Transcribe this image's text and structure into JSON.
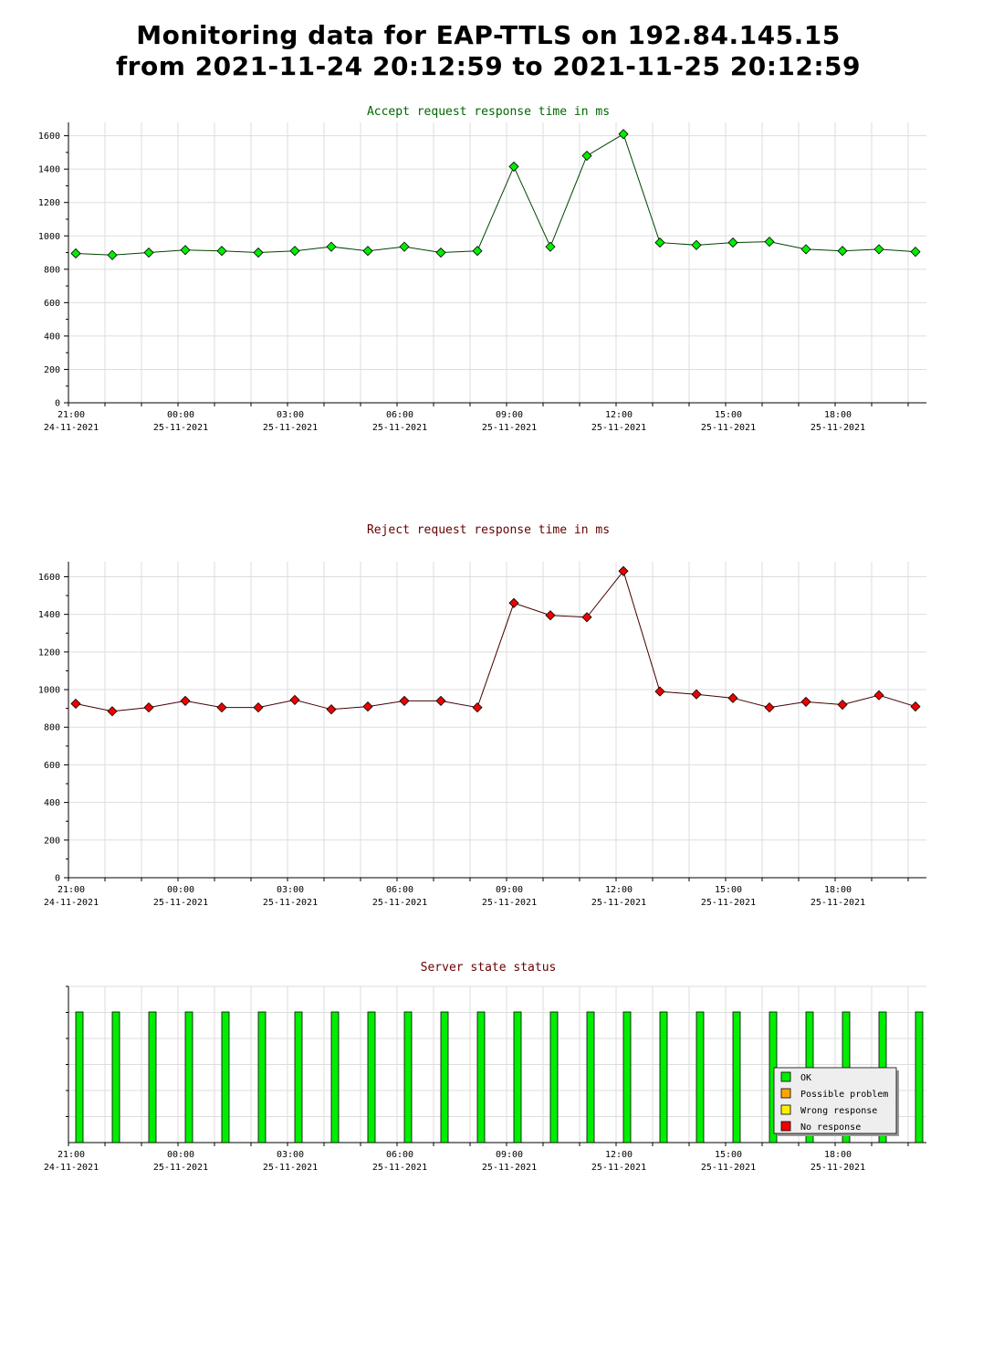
{
  "page_title": {
    "line1": "Monitoring data for EAP-TTLS on 192.84.145.15",
    "line2": "from 2021-11-24 20:12:59 to 2021-11-25 20:12:59"
  },
  "colors": {
    "accept_marker": "#00ee00",
    "accept_line": "#004400",
    "reject_marker": "#ee0000",
    "reject_line": "#440000",
    "status_ok": "#00ee00",
    "status_possible_problem": "#ffa500",
    "status_wrong_response": "#ffee00",
    "status_no_response": "#ee0000",
    "grid": "#dddddd",
    "accept_title": "#006600",
    "reject_title": "#660000",
    "status_title": "#660000"
  },
  "x_ticks": [
    {
      "time": "21:00",
      "date": "24-11-2021"
    },
    {
      "time": "00:00",
      "date": "25-11-2021"
    },
    {
      "time": "03:00",
      "date": "25-11-2021"
    },
    {
      "time": "06:00",
      "date": "25-11-2021"
    },
    {
      "time": "09:00",
      "date": "25-11-2021"
    },
    {
      "time": "12:00",
      "date": "25-11-2021"
    },
    {
      "time": "15:00",
      "date": "25-11-2021"
    },
    {
      "time": "18:00",
      "date": "25-11-2021"
    }
  ],
  "chart_data": [
    {
      "type": "line",
      "title": "Accept request response time in ms",
      "ylim": [
        0,
        1680
      ],
      "yticks": [
        0,
        200,
        400,
        600,
        800,
        1000,
        1200,
        1400,
        1600
      ],
      "grid": true,
      "x": [
        "2021-11-24 21:12",
        "2021-11-24 22:12",
        "2021-11-24 23:12",
        "2021-11-25 00:12",
        "2021-11-25 01:12",
        "2021-11-25 02:12",
        "2021-11-25 03:12",
        "2021-11-25 04:12",
        "2021-11-25 05:12",
        "2021-11-25 06:12",
        "2021-11-25 07:12",
        "2021-11-25 08:12",
        "2021-11-25 09:12",
        "2021-11-25 10:12",
        "2021-11-25 11:12",
        "2021-11-25 12:12",
        "2021-11-25 13:12",
        "2021-11-25 14:12",
        "2021-11-25 15:12",
        "2021-11-25 16:12",
        "2021-11-25 17:12",
        "2021-11-25 18:12",
        "2021-11-25 19:12",
        "2021-11-25 20:12"
      ],
      "values": [
        895,
        885,
        900,
        915,
        910,
        900,
        910,
        935,
        910,
        935,
        900,
        910,
        1415,
        935,
        1480,
        1610,
        960,
        945,
        960,
        965,
        920,
        910,
        920,
        905
      ]
    },
    {
      "type": "line",
      "title": "Reject request response time in ms",
      "ylim": [
        0,
        1680
      ],
      "yticks": [
        0,
        200,
        400,
        600,
        800,
        1000,
        1200,
        1400,
        1600
      ],
      "grid": true,
      "x": [
        "2021-11-24 21:12",
        "2021-11-24 22:12",
        "2021-11-24 23:12",
        "2021-11-25 00:12",
        "2021-11-25 01:12",
        "2021-11-25 02:12",
        "2021-11-25 03:12",
        "2021-11-25 04:12",
        "2021-11-25 05:12",
        "2021-11-25 06:12",
        "2021-11-25 07:12",
        "2021-11-25 08:12",
        "2021-11-25 09:12",
        "2021-11-25 10:12",
        "2021-11-25 11:12",
        "2021-11-25 12:12",
        "2021-11-25 13:12",
        "2021-11-25 14:12",
        "2021-11-25 15:12",
        "2021-11-25 16:12",
        "2021-11-25 17:12",
        "2021-11-25 18:12",
        "2021-11-25 19:12",
        "2021-11-25 20:12"
      ],
      "values": [
        925,
        885,
        905,
        940,
        905,
        905,
        945,
        895,
        910,
        940,
        940,
        905,
        1460,
        1395,
        1385,
        1630,
        990,
        975,
        955,
        905,
        935,
        920,
        970,
        910
      ]
    },
    {
      "type": "bar",
      "title": "Server state status",
      "grid": true,
      "x": [
        "2021-11-24 21:12",
        "2021-11-24 22:12",
        "2021-11-24 23:12",
        "2021-11-25 00:12",
        "2021-11-25 01:12",
        "2021-11-25 02:12",
        "2021-11-25 03:12",
        "2021-11-25 04:12",
        "2021-11-25 05:12",
        "2021-11-25 06:12",
        "2021-11-25 07:12",
        "2021-11-25 08:12",
        "2021-11-25 09:12",
        "2021-11-25 10:12",
        "2021-11-25 11:12",
        "2021-11-25 12:12",
        "2021-11-25 13:12",
        "2021-11-25 14:12",
        "2021-11-25 15:12",
        "2021-11-25 16:12",
        "2021-11-25 17:12",
        "2021-11-25 18:12",
        "2021-11-25 19:12",
        "2021-11-25 20:12"
      ],
      "status": [
        "OK",
        "OK",
        "OK",
        "OK",
        "OK",
        "OK",
        "OK",
        "OK",
        "OK",
        "OK",
        "OK",
        "OK",
        "OK",
        "OK",
        "OK",
        "OK",
        "OK",
        "OK",
        "OK",
        "OK",
        "OK",
        "OK",
        "OK",
        "OK"
      ],
      "legend_position": "bottom-right",
      "legend": [
        {
          "label": "OK",
          "color": "#00ee00"
        },
        {
          "label": "Possible problem",
          "color": "#ffa500"
        },
        {
          "label": "Wrong response",
          "color": "#ffee00"
        },
        {
          "label": "No response",
          "color": "#ee0000"
        }
      ]
    }
  ]
}
